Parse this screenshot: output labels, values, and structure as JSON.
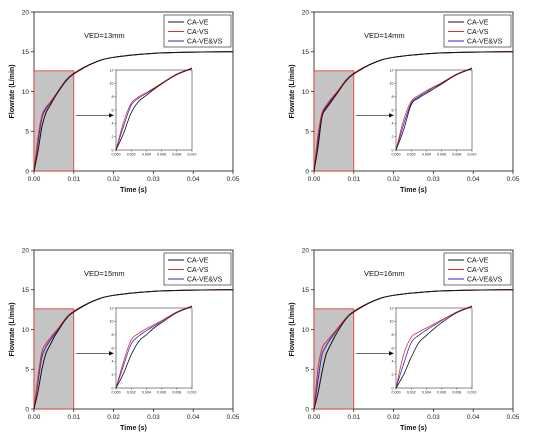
{
  "chart_data": [
    {
      "type": "line",
      "annotation": "VED=13mm",
      "xlabel": "Time (s)",
      "ylabel": "Flowrate (L/min)",
      "xlim": [
        0,
        0.05
      ],
      "ylim": [
        0,
        20
      ],
      "x_ticks": [
        "0.00",
        "0.01",
        "0.02",
        "0.03",
        "0.04",
        "0.05"
      ],
      "y_ticks": [
        "0",
        "5",
        "10",
        "15",
        "20"
      ],
      "legend": "top-right",
      "shaded_region": {
        "x": [
          0,
          0.01
        ],
        "y": [
          0,
          12.6
        ]
      },
      "series": [
        {
          "name": "CA-VE",
          "color": "#111111",
          "x": [
            0,
            0.001,
            0.002,
            0.003,
            0.004,
            0.005,
            0.006,
            0.008,
            0.01,
            0.015,
            0.02,
            0.03,
            0.04,
            0.05
          ],
          "y": [
            0,
            2.5,
            5.6,
            7.3,
            8.2,
            9.1,
            9.9,
            11.3,
            12.2,
            13.6,
            14.3,
            14.8,
            14.95,
            15.0
          ]
        },
        {
          "name": "CA-VS",
          "color": "#e0302a",
          "x": [
            0,
            0.001,
            0.002,
            0.003,
            0.004,
            0.005,
            0.006,
            0.008,
            0.01,
            0.015,
            0.02,
            0.03,
            0.04,
            0.05
          ],
          "y": [
            0,
            4.2,
            7.0,
            8.0,
            8.6,
            9.3,
            10.0,
            11.4,
            12.3,
            13.6,
            14.3,
            14.8,
            14.95,
            15.0
          ]
        },
        {
          "name": "CA-VE&VS",
          "color": "#2a2ad0",
          "x": [
            0,
            0.001,
            0.002,
            0.003,
            0.004,
            0.005,
            0.006,
            0.008,
            0.01,
            0.015,
            0.02,
            0.03,
            0.04,
            0.05
          ],
          "y": [
            0,
            3.6,
            6.7,
            7.8,
            8.5,
            9.2,
            10.0,
            11.4,
            12.3,
            13.6,
            14.3,
            14.8,
            14.95,
            15.0
          ]
        }
      ],
      "inset": {
        "xlim": [
          0,
          0.01
        ],
        "ylim": [
          0,
          12
        ],
        "x_ticks": [
          "0.000",
          "0.002",
          "0.004",
          "0.006",
          "0.008",
          "0.010"
        ],
        "y_ticks": [
          "0",
          "2",
          "4",
          "6",
          "8",
          "10",
          "12"
        ]
      }
    },
    {
      "type": "line",
      "annotation": "VED=14mm",
      "xlabel": "Time (s)",
      "ylabel": "Flowrate (L/min)",
      "xlim": [
        0,
        0.05
      ],
      "ylim": [
        0,
        20
      ],
      "x_ticks": [
        "0.00",
        "0.01",
        "0.02",
        "0.03",
        "0.04",
        "0.05"
      ],
      "y_ticks": [
        "0",
        "5",
        "10",
        "15",
        "20"
      ],
      "legend": "top-right",
      "shaded_region": {
        "x": [
          0,
          0.01
        ],
        "y": [
          0,
          12.6
        ]
      },
      "series": [
        {
          "name": "CA-VE",
          "color": "#111111",
          "x": [
            0,
            0.001,
            0.002,
            0.003,
            0.004,
            0.005,
            0.006,
            0.008,
            0.01,
            0.015,
            0.02,
            0.03,
            0.04,
            0.05
          ],
          "y": [
            0,
            3.0,
            6.8,
            7.8,
            8.5,
            9.2,
            9.9,
            11.3,
            12.2,
            13.6,
            14.3,
            14.8,
            14.95,
            15.0
          ]
        },
        {
          "name": "CA-VS",
          "color": "#e0302a",
          "x": [
            0,
            0.001,
            0.002,
            0.003,
            0.004,
            0.005,
            0.006,
            0.008,
            0.01,
            0.015,
            0.02,
            0.03,
            0.04,
            0.05
          ],
          "y": [
            0,
            4.5,
            7.3,
            8.2,
            8.9,
            9.5,
            10.1,
            11.4,
            12.3,
            13.6,
            14.3,
            14.8,
            14.95,
            15.0
          ]
        },
        {
          "name": "CA-VE&VS",
          "color": "#2a2ad0",
          "x": [
            0,
            0.001,
            0.002,
            0.003,
            0.004,
            0.005,
            0.006,
            0.008,
            0.01,
            0.015,
            0.02,
            0.03,
            0.04,
            0.05
          ],
          "y": [
            0,
            3.8,
            7.0,
            8.0,
            8.7,
            9.4,
            10.0,
            11.4,
            12.3,
            13.6,
            14.3,
            14.8,
            14.95,
            15.0
          ]
        }
      ],
      "inset": {
        "xlim": [
          0,
          0.01
        ],
        "ylim": [
          0,
          12
        ],
        "x_ticks": [
          "0.000",
          "0.002",
          "0.004",
          "0.006",
          "0.008",
          "0.010"
        ],
        "y_ticks": [
          "0",
          "2",
          "4",
          "6",
          "8",
          "10",
          "12"
        ]
      }
    },
    {
      "type": "line",
      "annotation": "VED=15mm",
      "xlabel": "Time (s)",
      "ylabel": "Flowrate (L/min)",
      "xlim": [
        0,
        0.05
      ],
      "ylim": [
        0,
        20
      ],
      "x_ticks": [
        "0.00",
        "0.01",
        "0.02",
        "0.03",
        "0.04",
        "0.05"
      ],
      "y_ticks": [
        "0",
        "5",
        "10",
        "15",
        "20"
      ],
      "legend": "top-right",
      "shaded_region": {
        "x": [
          0,
          0.01
        ],
        "y": [
          0,
          12.6
        ]
      },
      "series": [
        {
          "name": "CA-VE",
          "color": "#111111",
          "x": [
            0,
            0.001,
            0.002,
            0.003,
            0.004,
            0.005,
            0.006,
            0.008,
            0.01,
            0.015,
            0.02,
            0.03,
            0.04,
            0.05
          ],
          "y": [
            0,
            2.2,
            5.0,
            7.0,
            8.0,
            9.0,
            9.8,
            11.3,
            12.2,
            13.6,
            14.3,
            14.8,
            14.95,
            15.0
          ]
        },
        {
          "name": "CA-VS",
          "color": "#e0302a",
          "x": [
            0,
            0.001,
            0.002,
            0.003,
            0.004,
            0.005,
            0.006,
            0.008,
            0.01,
            0.015,
            0.02,
            0.03,
            0.04,
            0.05
          ],
          "y": [
            0,
            4.0,
            7.2,
            8.2,
            8.9,
            9.5,
            10.1,
            11.4,
            12.3,
            13.6,
            14.3,
            14.8,
            14.95,
            15.0
          ]
        },
        {
          "name": "CA-VE&VS",
          "color": "#2a2ad0",
          "x": [
            0,
            0.001,
            0.002,
            0.003,
            0.004,
            0.005,
            0.006,
            0.008,
            0.01,
            0.015,
            0.02,
            0.03,
            0.04,
            0.05
          ],
          "y": [
            0,
            3.4,
            6.6,
            7.8,
            8.6,
            9.3,
            10.0,
            11.4,
            12.3,
            13.6,
            14.3,
            14.8,
            14.95,
            15.0
          ]
        }
      ],
      "inset": {
        "xlim": [
          0,
          0.01
        ],
        "ylim": [
          0,
          12
        ],
        "x_ticks": [
          "0.000",
          "0.002",
          "0.004",
          "0.006",
          "0.008",
          "0.010"
        ],
        "y_ticks": [
          "0",
          "2",
          "4",
          "6",
          "8",
          "10",
          "12"
        ]
      }
    },
    {
      "type": "line",
      "annotation": "VED=16mm",
      "xlabel": "Time (s)",
      "ylabel": "Flowrate (L/min)",
      "xlim": [
        0,
        0.05
      ],
      "ylim": [
        0,
        20
      ],
      "x_ticks": [
        "0.00",
        "0.01",
        "0.02",
        "0.03",
        "0.04",
        "0.05"
      ],
      "y_ticks": [
        "0",
        "5",
        "10",
        "15",
        "20"
      ],
      "legend": "top-right",
      "shaded_region": {
        "x": [
          0,
          0.01
        ],
        "y": [
          0,
          12.6
        ]
      },
      "series": [
        {
          "name": "CA-VE",
          "color": "#111111",
          "x": [
            0,
            0.001,
            0.002,
            0.003,
            0.004,
            0.005,
            0.006,
            0.008,
            0.01,
            0.015,
            0.02,
            0.03,
            0.04,
            0.05
          ],
          "y": [
            0,
            2.0,
            4.6,
            6.8,
            7.9,
            8.9,
            9.8,
            11.3,
            12.2,
            13.6,
            14.3,
            14.8,
            14.95,
            15.0
          ]
        },
        {
          "name": "CA-VS",
          "color": "#e0302a",
          "x": [
            0,
            0.001,
            0.002,
            0.003,
            0.004,
            0.005,
            0.006,
            0.008,
            0.01,
            0.015,
            0.02,
            0.03,
            0.04,
            0.05
          ],
          "y": [
            0,
            5.0,
            7.6,
            8.4,
            9.0,
            9.6,
            10.2,
            11.4,
            12.3,
            13.6,
            14.3,
            14.8,
            14.95,
            15.0
          ]
        },
        {
          "name": "CA-VE&VS",
          "color": "#2a2ad0",
          "x": [
            0,
            0.001,
            0.002,
            0.003,
            0.004,
            0.005,
            0.006,
            0.008,
            0.01,
            0.015,
            0.02,
            0.03,
            0.04,
            0.05
          ],
          "y": [
            0,
            3.6,
            6.8,
            7.9,
            8.7,
            9.4,
            10.1,
            11.4,
            12.3,
            13.6,
            14.3,
            14.8,
            14.95,
            15.0
          ]
        }
      ],
      "inset": {
        "xlim": [
          0,
          0.01
        ],
        "ylim": [
          0,
          12
        ],
        "x_ticks": [
          "0.000",
          "0.002",
          "0.004",
          "0.006",
          "0.008",
          "0.010"
        ],
        "y_ticks": [
          "0",
          "2",
          "4",
          "6",
          "8",
          "10",
          "12"
        ]
      }
    }
  ]
}
